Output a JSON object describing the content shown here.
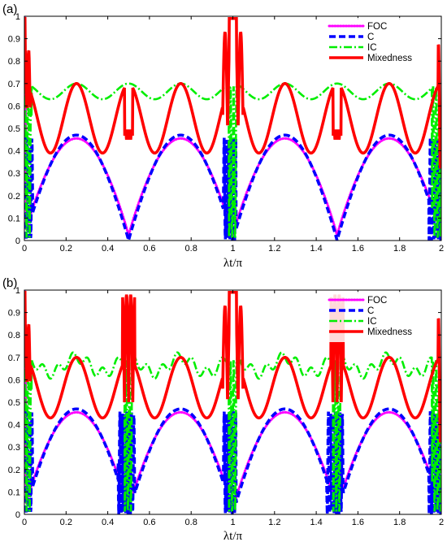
{
  "chart_data": [
    {
      "type": "line",
      "panel_label": "(a)",
      "xlabel": "λt/π",
      "ylabel": "",
      "xlim": [
        0,
        2
      ],
      "ylim": [
        0,
        1
      ],
      "xticks": [
        "0",
        "0.2",
        "0.4",
        "0.6",
        "0.8",
        "1",
        "1.2",
        "1.4",
        "1.6",
        "1.8",
        "2"
      ],
      "yticks": [
        "0",
        "0.1",
        "0.2",
        "0.3",
        "0.4",
        "0.5",
        "0.6",
        "0.7",
        "0.8",
        "0.9",
        "1"
      ],
      "legend": {
        "position": "top-right"
      },
      "series": [
        {
          "name": "FOC",
          "color": "#ff00ff",
          "style": "dotted"
        },
        {
          "name": "C",
          "color": "#0000ff",
          "style": "dashed"
        },
        {
          "name": "IC",
          "color": "#00ee00",
          "style": "dashdot"
        },
        {
          "name": "Mixedness",
          "color": "#ff0000",
          "style": "solid"
        }
      ]
    },
    {
      "type": "line",
      "panel_label": "(b)",
      "xlabel": "λt/π",
      "ylabel": "",
      "xlim": [
        0,
        2
      ],
      "ylim": [
        0,
        1
      ],
      "xticks": [
        "0",
        "0.2",
        "0.4",
        "0.6",
        "0.8",
        "1",
        "1.2",
        "1.4",
        "1.6",
        "1.8",
        "2"
      ],
      "yticks": [
        "0",
        "0.1",
        "0.2",
        "0.3",
        "0.4",
        "0.5",
        "0.6",
        "0.7",
        "0.8",
        "0.9",
        "1"
      ],
      "legend": {
        "position": "top-right"
      },
      "series": [
        {
          "name": "FOC",
          "color": "#ff00ff",
          "style": "dotted"
        },
        {
          "name": "C",
          "color": "#0000ff",
          "style": "dashed"
        },
        {
          "name": "IC",
          "color": "#00ee00",
          "style": "dashdot"
        },
        {
          "name": "Mixedness",
          "color": "#ff0000",
          "style": "solid"
        }
      ]
    }
  ]
}
